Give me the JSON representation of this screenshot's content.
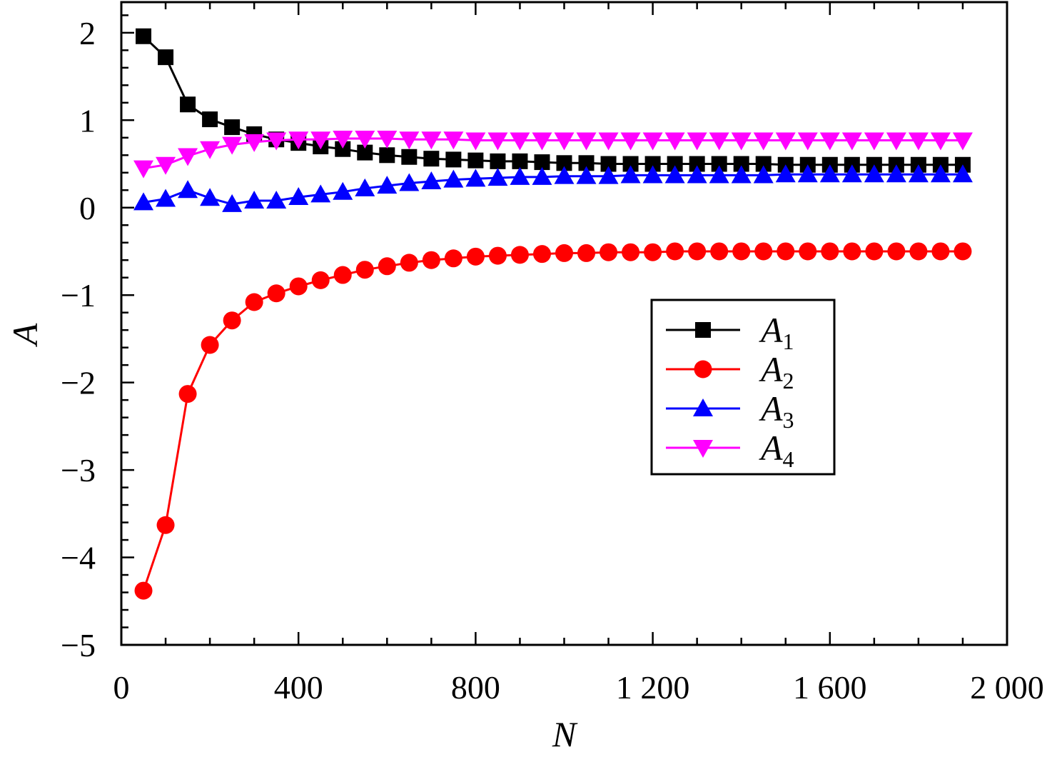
{
  "chart_data": {
    "type": "line",
    "title": "",
    "xlabel": "N",
    "ylabel": "A",
    "xlim": [
      0,
      2000
    ],
    "ylim": [
      -5,
      2.35
    ],
    "xticks": [
      0,
      400,
      800,
      1200,
      1600,
      2000
    ],
    "xtick_labels": [
      "0",
      "400",
      "800",
      "1 200",
      "1 600",
      "2 000"
    ],
    "yticks": [
      -5,
      -4,
      -3,
      -2,
      -1,
      0,
      1,
      2
    ],
    "ytick_labels": [
      "−5",
      "−4",
      "−3",
      "−2",
      "−1",
      "0",
      "1",
      "2"
    ],
    "grid": false,
    "legend_position": "center-right",
    "x": [
      50,
      100,
      150,
      200,
      250,
      300,
      350,
      400,
      450,
      500,
      550,
      600,
      650,
      700,
      750,
      800,
      850,
      900,
      950,
      1000,
      1050,
      1100,
      1150,
      1200,
      1250,
      1300,
      1350,
      1400,
      1450,
      1500,
      1550,
      1600,
      1650,
      1700,
      1750,
      1800,
      1850,
      1900
    ],
    "series": [
      {
        "name": "A",
        "subscript": "1",
        "color": "#000000",
        "marker": "square",
        "values": [
          1.96,
          1.72,
          1.18,
          1.01,
          0.92,
          0.84,
          0.78,
          0.74,
          0.7,
          0.67,
          0.63,
          0.6,
          0.58,
          0.56,
          0.55,
          0.54,
          0.53,
          0.53,
          0.52,
          0.51,
          0.51,
          0.5,
          0.5,
          0.5,
          0.5,
          0.5,
          0.5,
          0.5,
          0.5,
          0.49,
          0.49,
          0.49,
          0.49,
          0.49,
          0.49,
          0.49,
          0.49,
          0.49
        ]
      },
      {
        "name": "A",
        "subscript": "2",
        "color": "#ff0000",
        "marker": "circle",
        "values": [
          -4.38,
          -3.63,
          -2.13,
          -1.57,
          -1.29,
          -1.08,
          -0.98,
          -0.9,
          -0.83,
          -0.77,
          -0.71,
          -0.67,
          -0.63,
          -0.6,
          -0.58,
          -0.56,
          -0.55,
          -0.54,
          -0.53,
          -0.52,
          -0.52,
          -0.51,
          -0.51,
          -0.51,
          -0.5,
          -0.5,
          -0.5,
          -0.5,
          -0.5,
          -0.5,
          -0.5,
          -0.5,
          -0.5,
          -0.5,
          -0.5,
          -0.5,
          -0.5,
          -0.5
        ]
      },
      {
        "name": "A",
        "subscript": "3",
        "color": "#0000ff",
        "marker": "triangle-up",
        "values": [
          0.06,
          0.1,
          0.2,
          0.11,
          0.04,
          0.08,
          0.08,
          0.12,
          0.15,
          0.18,
          0.22,
          0.25,
          0.28,
          0.3,
          0.32,
          0.33,
          0.34,
          0.35,
          0.35,
          0.36,
          0.36,
          0.36,
          0.37,
          0.37,
          0.37,
          0.37,
          0.37,
          0.37,
          0.37,
          0.38,
          0.38,
          0.38,
          0.38,
          0.38,
          0.38,
          0.38,
          0.38,
          0.38
        ]
      },
      {
        "name": "A",
        "subscript": "4",
        "color": "#ff00ff",
        "marker": "triangle-down",
        "values": [
          0.45,
          0.49,
          0.59,
          0.67,
          0.72,
          0.75,
          0.77,
          0.78,
          0.78,
          0.79,
          0.79,
          0.79,
          0.78,
          0.78,
          0.78,
          0.77,
          0.77,
          0.77,
          0.77,
          0.77,
          0.77,
          0.77,
          0.77,
          0.77,
          0.77,
          0.77,
          0.77,
          0.77,
          0.77,
          0.77,
          0.77,
          0.77,
          0.77,
          0.77,
          0.77,
          0.77,
          0.77,
          0.77
        ]
      }
    ]
  }
}
